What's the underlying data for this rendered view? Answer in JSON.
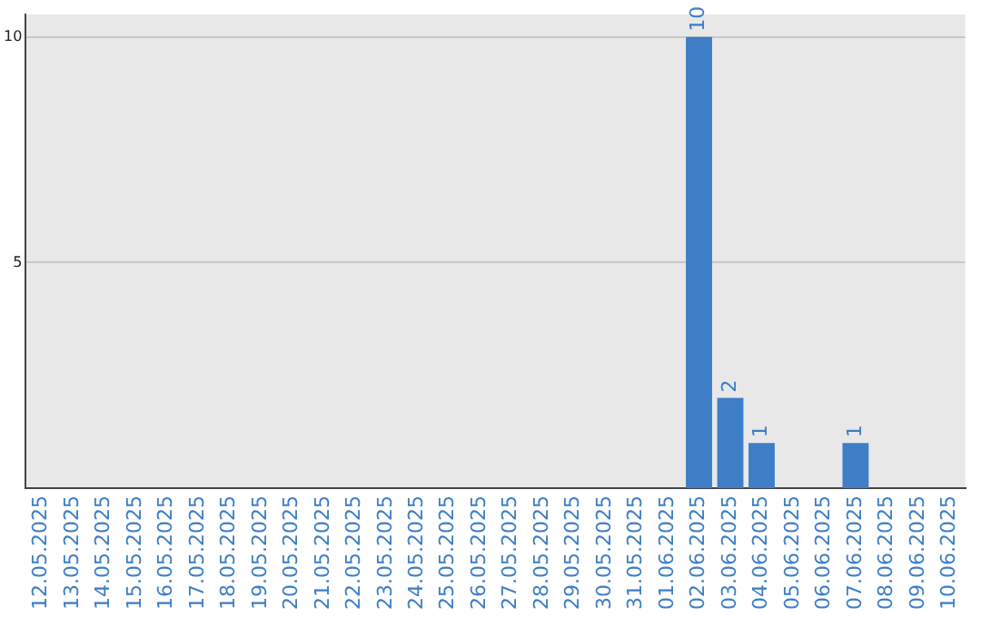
{
  "chart_data": {
    "type": "bar",
    "categories": [
      "12.05.2025",
      "13.05.2025",
      "14.05.2025",
      "15.05.2025",
      "16.05.2025",
      "17.05.2025",
      "18.05.2025",
      "19.05.2025",
      "20.05.2025",
      "21.05.2025",
      "22.05.2025",
      "23.05.2025",
      "24.05.2025",
      "25.05.2025",
      "26.05.2025",
      "27.05.2025",
      "28.05.2025",
      "29.05.2025",
      "30.05.2025",
      "31.05.2025",
      "01.06.2025",
      "02.06.2025",
      "03.06.2025",
      "04.06.2025",
      "05.06.2025",
      "06.06.2025",
      "07.06.2025",
      "08.06.2025",
      "09.06.2025",
      "10.06.2025"
    ],
    "values": [
      0,
      0,
      0,
      0,
      0,
      0,
      0,
      0,
      0,
      0,
      0,
      0,
      0,
      0,
      0,
      0,
      0,
      0,
      0,
      0,
      0,
      10,
      2,
      1,
      0,
      0,
      1,
      0,
      0,
      0
    ],
    "value_labels": [
      null,
      null,
      null,
      null,
      null,
      null,
      null,
      null,
      null,
      null,
      null,
      null,
      null,
      null,
      null,
      null,
      null,
      null,
      null,
      null,
      null,
      "10",
      "2",
      "1",
      null,
      null,
      "1",
      null,
      null,
      null
    ],
    "color": "#3d7ec6",
    "ylim": [
      0,
      10.5
    ],
    "yticks": [
      5,
      10
    ],
    "grid": "y",
    "legend": false
  }
}
